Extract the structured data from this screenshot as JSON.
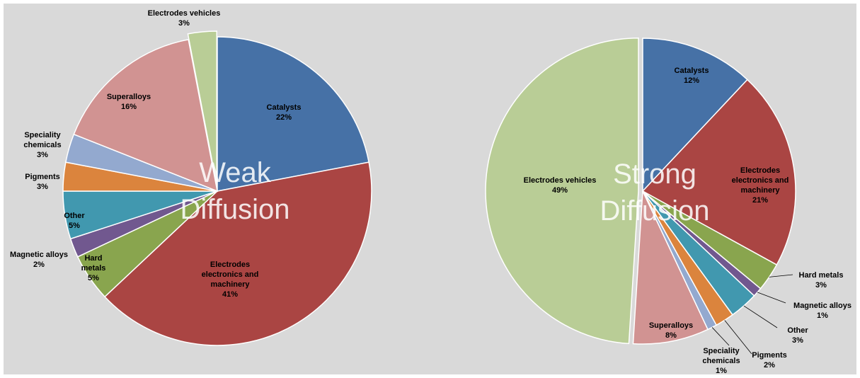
{
  "chart_data": [
    {
      "type": "pie",
      "annotation": "Weak Diffusion",
      "categories": [
        "Catalysts",
        "Electrodes electronics and machinery",
        "Hard metals",
        "Magnetic alloys",
        "Other",
        "Pigments",
        "Speciality chemicals",
        "Superalloys",
        "Electrodes vehicles"
      ],
      "values": [
        22,
        41,
        5,
        2,
        5,
        3,
        3,
        16,
        3
      ],
      "value_labels": [
        "22%",
        "41%",
        "5%",
        "2%",
        "5%",
        "3%",
        "3%",
        "16%",
        "3%"
      ],
      "colors": [
        "#4671a6",
        "#aa4543",
        "#89a54e",
        "#71588f",
        "#4198af",
        "#db843d",
        "#93a9cf",
        "#d19392",
        "#b9cd96"
      ]
    },
    {
      "type": "pie",
      "annotation": "Strong Diffusion",
      "categories": [
        "Catalysts",
        "Electrodes electronics and machinery",
        "Hard metals",
        "Magnetic alloys",
        "Other",
        "Pigments",
        "Speciality chemicals",
        "Superalloys",
        "Electrodes vehicles"
      ],
      "values": [
        12,
        21,
        3,
        1,
        3,
        2,
        1,
        8,
        49
      ],
      "value_labels": [
        "12%",
        "21%",
        "3%",
        "1%",
        "3%",
        "2%",
        "1%",
        "8%",
        "49%"
      ],
      "colors": [
        "#4671a6",
        "#aa4543",
        "#89a54e",
        "#71588f",
        "#4198af",
        "#db843d",
        "#93a9cf",
        "#d19392",
        "#b9cd96"
      ]
    }
  ]
}
